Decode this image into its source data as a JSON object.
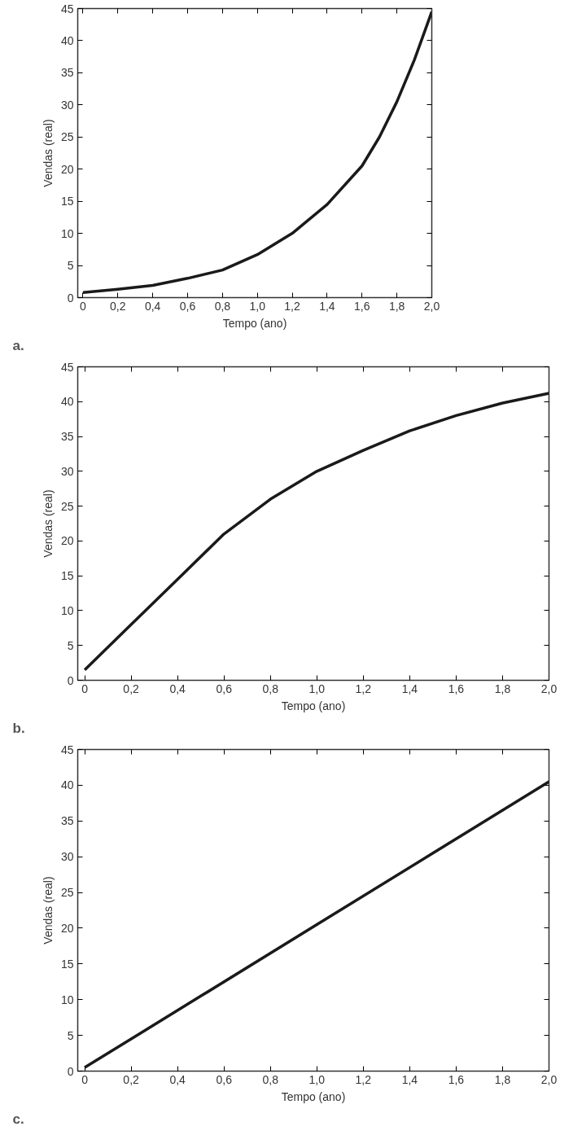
{
  "chart_data": [
    {
      "type": "line",
      "xlabel": "Tempo (ano)",
      "ylabel": "Vendas (real)",
      "annotations": [
        "a."
      ],
      "grid": false,
      "marker": "none",
      "line_style": "solid",
      "xlim": [
        -0.03,
        2.0
      ],
      "ylim": [
        0,
        45
      ],
      "xticks": [
        {
          "value": 0,
          "label": "0"
        },
        {
          "value": 0.2,
          "label": "0,2"
        },
        {
          "value": 0.4,
          "label": "0,4"
        },
        {
          "value": 0.6,
          "label": "0,6"
        },
        {
          "value": 0.8,
          "label": "0,8"
        },
        {
          "value": 1.0,
          "label": "1,0"
        },
        {
          "value": 1.2,
          "label": "1,2"
        },
        {
          "value": 1.4,
          "label": "1,4"
        },
        {
          "value": 1.6,
          "label": "1,6"
        },
        {
          "value": 1.8,
          "label": "1,8"
        },
        {
          "value": 2.0,
          "label": "2,0"
        }
      ],
      "yticks": [
        0,
        5,
        10,
        15,
        20,
        25,
        30,
        35,
        40,
        45
      ],
      "x": [
        0,
        0.2,
        0.4,
        0.6,
        0.8,
        1.0,
        1.2,
        1.4,
        1.6,
        1.7,
        1.8,
        1.9,
        2.0
      ],
      "series": [
        {
          "color": "#1a1a1a",
          "values": [
            0.8,
            1.3,
            1.9,
            3.0,
            4.3,
            6.7,
            10,
            14.5,
            20.5,
            25,
            30.5,
            37,
            44.5
          ]
        }
      ]
    },
    {
      "type": "line",
      "xlabel": "Tempo (ano)",
      "ylabel": "Vendas (real)",
      "annotations": [
        "b."
      ],
      "grid": false,
      "marker": "none",
      "line_style": "solid",
      "xlim": [
        -0.03,
        2.0
      ],
      "ylim": [
        0,
        45
      ],
      "xticks": [
        {
          "value": 0,
          "label": "0"
        },
        {
          "value": 0.2,
          "label": "0,2"
        },
        {
          "value": 0.4,
          "label": "0,4"
        },
        {
          "value": 0.6,
          "label": "0,6"
        },
        {
          "value": 0.8,
          "label": "0,8"
        },
        {
          "value": 1.0,
          "label": "1,0"
        },
        {
          "value": 1.2,
          "label": "1,2"
        },
        {
          "value": 1.4,
          "label": "1,4"
        },
        {
          "value": 1.6,
          "label": "1,6"
        },
        {
          "value": 1.8,
          "label": "1,8"
        },
        {
          "value": 2.0,
          "label": "2,0"
        }
      ],
      "yticks": [
        0,
        5,
        10,
        15,
        20,
        25,
        30,
        35,
        40,
        45
      ],
      "x": [
        0,
        0.2,
        0.4,
        0.6,
        0.8,
        1.0,
        1.2,
        1.4,
        1.6,
        1.8,
        2.0
      ],
      "series": [
        {
          "color": "#1a1a1a",
          "values": [
            1.5,
            8,
            14.5,
            21,
            26,
            30,
            33,
            35.8,
            38,
            39.8,
            41.2
          ]
        }
      ]
    },
    {
      "type": "line",
      "xlabel": "Tempo (ano)",
      "ylabel": "Vendas (real)",
      "annotations": [
        "c."
      ],
      "grid": false,
      "marker": "none",
      "line_style": "solid",
      "xlim": [
        -0.03,
        2.0
      ],
      "ylim": [
        0,
        45
      ],
      "xticks": [
        {
          "value": 0,
          "label": "0"
        },
        {
          "value": 0.2,
          "label": "0,2"
        },
        {
          "value": 0.4,
          "label": "0,4"
        },
        {
          "value": 0.6,
          "label": "0,6"
        },
        {
          "value": 0.8,
          "label": "0,8"
        },
        {
          "value": 1.0,
          "label": "1,0"
        },
        {
          "value": 1.2,
          "label": "1,2"
        },
        {
          "value": 1.4,
          "label": "1,4"
        },
        {
          "value": 1.6,
          "label": "1,6"
        },
        {
          "value": 1.8,
          "label": "1,8"
        },
        {
          "value": 2.0,
          "label": "2,0"
        }
      ],
      "yticks": [
        0,
        5,
        10,
        15,
        20,
        25,
        30,
        35,
        40,
        45
      ],
      "x": [
        0,
        0.5,
        1.0,
        1.5,
        2.0
      ],
      "series": [
        {
          "color": "#1a1a1a",
          "values": [
            0.5,
            10.5,
            20.5,
            30.5,
            40.5
          ]
        }
      ]
    }
  ]
}
